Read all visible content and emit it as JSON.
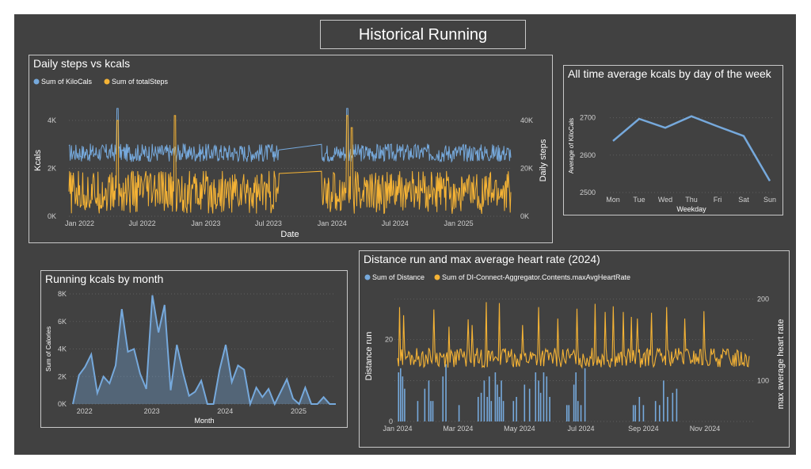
{
  "page_title": "Historical Running",
  "colors": {
    "blue": "#76a9dc",
    "orange": "#f5b335",
    "background": "#414141",
    "text": "#ffffff",
    "axis_text": "#d0d0d0"
  },
  "chart_data": [
    {
      "id": "steps_kcals",
      "type": "line",
      "title": "Daily steps vs kcals",
      "xlabel": "Date",
      "ylabel": "Kcals",
      "y2label": "Daily steps",
      "x_range": [
        "2021-12-01",
        "2025-06-01"
      ],
      "x_ticks": [
        "Jan 2022",
        "Jul 2022",
        "Jan 2023",
        "Jul 2023",
        "Jan 2024",
        "Jul 2024",
        "Jan 2025"
      ],
      "y_ticks": [
        "0K",
        "2K",
        "4K"
      ],
      "y2_ticks": [
        "0K",
        "20K",
        "40K"
      ],
      "ylim": [
        0,
        4000
      ],
      "y2lim": [
        0,
        40000
      ],
      "gap": [
        "2023-08-01",
        "2023-12-01"
      ],
      "series": [
        {
          "name": "Sum of KiloCals",
          "axis": "left",
          "color": "#76a9dc",
          "baseline": 2650,
          "noise": 380,
          "spikes": [
            [
              0.11,
              4500
            ],
            [
              0.63,
              4500
            ]
          ],
          "min": 1900
        },
        {
          "name": "Sum of totalSteps",
          "axis": "right",
          "color": "#f5b335",
          "baseline": 10000,
          "noise": 9000,
          "spikes": [
            [
              0.11,
              40000
            ],
            [
              0.24,
              42000
            ],
            [
              0.63,
              42000
            ],
            [
              0.64,
              37000
            ]
          ],
          "min": 0
        }
      ],
      "legend": [
        "Sum of KiloCals",
        "Sum of totalSteps"
      ]
    },
    {
      "id": "weekday_kcals",
      "type": "line",
      "title": "All time average kcals by day of the week",
      "xlabel": "Weekday",
      "ylabel": "Average of KiloCals",
      "categories": [
        "Mon",
        "Tue",
        "Wed",
        "Thu",
        "Fri",
        "Sat",
        "Sun"
      ],
      "values": [
        2638,
        2697,
        2673,
        2704,
        2677,
        2651,
        2531
      ],
      "y_ticks": [
        "2500",
        "2600",
        "2700"
      ],
      "ylim": [
        2500,
        2750
      ]
    },
    {
      "id": "kcals_month",
      "type": "area",
      "title": "Running kcals by month",
      "xlabel": "Month",
      "ylabel": "Sum of Calories",
      "x_ticks": [
        "2022",
        "2023",
        "2024",
        "2025"
      ],
      "y_ticks": [
        "0K",
        "2K",
        "4K",
        "6K",
        "8K"
      ],
      "ylim": [
        0,
        8000
      ],
      "values": [
        0,
        2100,
        2700,
        3600,
        800,
        2000,
        1500,
        2800,
        6900,
        3800,
        4000,
        2200,
        1100,
        7900,
        5200,
        7200,
        1000,
        4300,
        2300,
        600,
        900,
        1700,
        0,
        0,
        2500,
        4300,
        1600,
        2800,
        2500,
        0,
        1200,
        500,
        1100,
        0,
        900,
        1800,
        400,
        0,
        1200,
        0,
        0,
        500,
        0,
        0
      ]
    },
    {
      "id": "distance_hr",
      "type": "bar+line",
      "title": "Distance run and max average heart rate (2024)",
      "xlabel": "",
      "ylabel": "Distance run",
      "y2label": "max average heart rate",
      "x_range": [
        "2024-01-01",
        "2024-12-15"
      ],
      "x_ticks": [
        "Jan 2024",
        "Mar 2024",
        "May 2024",
        "Jul 2024",
        "Sep 2024",
        "Nov 2024"
      ],
      "y_ticks": [
        "0",
        "20"
      ],
      "y2_ticks": [
        "100",
        "200"
      ],
      "ylim": [
        0,
        30
      ],
      "y2lim": [
        50,
        210
      ],
      "legend": [
        "Sum of Distance",
        "Sum of DI-Connect-Aggregator.Contents.maxAvgHeartRate"
      ],
      "bars": [
        {
          "day": 1,
          "value": 12
        },
        {
          "day": 3,
          "value": 13
        },
        {
          "day": 5,
          "value": 11
        },
        {
          "day": 7,
          "value": 8
        },
        {
          "day": 20,
          "value": 5
        },
        {
          "day": 27,
          "value": 8
        },
        {
          "day": 31,
          "value": 10
        },
        {
          "day": 33,
          "value": 5
        },
        {
          "day": 35,
          "value": 5
        },
        {
          "day": 45,
          "value": 11
        },
        {
          "day": 48,
          "value": 14
        },
        {
          "day": 61,
          "value": 4
        },
        {
          "day": 80,
          "value": 6
        },
        {
          "day": 83,
          "value": 7
        },
        {
          "day": 86,
          "value": 10
        },
        {
          "day": 89,
          "value": 6
        },
        {
          "day": 91,
          "value": 11
        },
        {
          "day": 93,
          "value": 5
        },
        {
          "day": 97,
          "value": 12
        },
        {
          "day": 99,
          "value": 9
        },
        {
          "day": 101,
          "value": 6
        },
        {
          "day": 103,
          "value": 10
        },
        {
          "day": 105,
          "value": 5
        },
        {
          "day": 115,
          "value": 5
        },
        {
          "day": 118,
          "value": 6
        },
        {
          "day": 126,
          "value": 9
        },
        {
          "day": 131,
          "value": 8
        },
        {
          "day": 137,
          "value": 12
        },
        {
          "day": 140,
          "value": 10
        },
        {
          "day": 142,
          "value": 7
        },
        {
          "day": 145,
          "value": 12
        },
        {
          "day": 148,
          "value": 11
        },
        {
          "day": 151,
          "value": 6
        },
        {
          "day": 168,
          "value": 4
        },
        {
          "day": 170,
          "value": 4
        },
        {
          "day": 175,
          "value": 9
        },
        {
          "day": 177,
          "value": 12
        },
        {
          "day": 179,
          "value": 5
        },
        {
          "day": 182,
          "value": 4
        },
        {
          "day": 186,
          "value": 13
        },
        {
          "day": 234,
          "value": 4
        },
        {
          "day": 236,
          "value": 4
        },
        {
          "day": 240,
          "value": 6
        },
        {
          "day": 244,
          "value": 4
        },
        {
          "day": 256,
          "value": 5
        },
        {
          "day": 260,
          "value": 4
        },
        {
          "day": 264,
          "value": 10
        },
        {
          "day": 268,
          "value": 6
        },
        {
          "day": 273,
          "value": 7
        },
        {
          "day": 277,
          "value": 8
        }
      ],
      "hr_profile": {
        "baseline": 128,
        "noise": 12,
        "peaks": [
          [
            2,
            190
          ],
          [
            6,
            180
          ],
          [
            36,
            187
          ],
          [
            51,
            166
          ],
          [
            70,
            175
          ],
          [
            74,
            168
          ],
          [
            88,
            196
          ],
          [
            101,
            195
          ],
          [
            124,
            168
          ],
          [
            140,
            190
          ],
          [
            159,
            176
          ],
          [
            178,
            188
          ],
          [
            196,
            194
          ],
          [
            206,
            184
          ],
          [
            214,
            191
          ],
          [
            224,
            184
          ],
          [
            232,
            178
          ],
          [
            238,
            176
          ],
          [
            252,
            183
          ],
          [
            267,
            190
          ],
          [
            285,
            176
          ],
          [
            304,
            185
          ]
        ]
      }
    }
  ]
}
